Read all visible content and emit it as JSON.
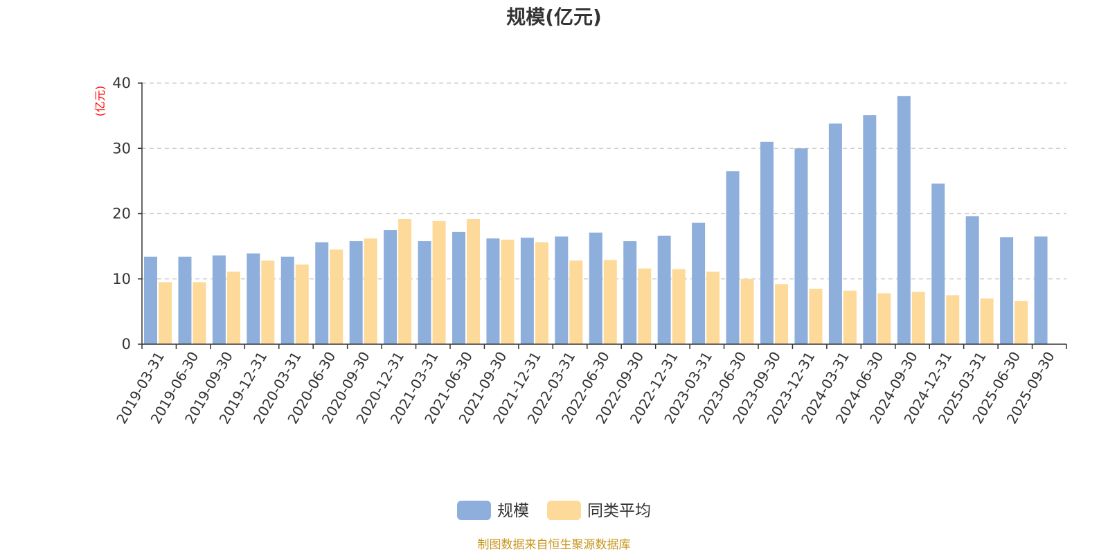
{
  "chart_data": {
    "type": "bar",
    "title": "规模(亿元)",
    "ylabel": "(亿元)",
    "ylim": [
      0,
      40
    ],
    "yticks": [
      0,
      10,
      20,
      30,
      40
    ],
    "grid": true,
    "legend_position": "bottom-center",
    "categories": [
      "2019-03-31",
      "2019-06-30",
      "2019-09-30",
      "2019-12-31",
      "2020-03-31",
      "2020-06-30",
      "2020-09-30",
      "2020-12-31",
      "2021-03-31",
      "2021-06-30",
      "2021-09-30",
      "2021-12-31",
      "2022-03-31",
      "2022-06-30",
      "2022-09-30",
      "2022-12-31",
      "2023-03-31",
      "2023-06-30",
      "2023-09-30",
      "2023-12-31",
      "2024-03-31",
      "2024-06-30",
      "2024-09-30",
      "2024-12-31",
      "2025-03-31",
      "2025-06-30",
      "2025-09-30"
    ],
    "series": [
      {
        "name": "规模",
        "color": "#8eaedb",
        "values": [
          13.4,
          13.4,
          13.6,
          13.9,
          13.4,
          15.6,
          15.8,
          17.5,
          15.8,
          17.2,
          16.2,
          16.3,
          16.5,
          17.1,
          15.8,
          16.6,
          18.6,
          26.5,
          31.0,
          30.0,
          33.8,
          35.1,
          38.0,
          24.6,
          19.6,
          16.4,
          16.5
        ]
      },
      {
        "name": "同类平均",
        "color": "#fdd99a",
        "values": [
          9.5,
          9.5,
          11.1,
          12.8,
          12.2,
          14.5,
          16.2,
          19.2,
          18.9,
          19.2,
          16.0,
          15.6,
          12.8,
          12.9,
          11.6,
          11.5,
          11.1,
          10.0,
          9.2,
          8.5,
          8.2,
          7.8,
          8.0,
          7.5,
          7.0,
          6.6,
          null
        ]
      }
    ]
  },
  "footer": {
    "source": "制图数据来自恒生聚源数据库"
  }
}
